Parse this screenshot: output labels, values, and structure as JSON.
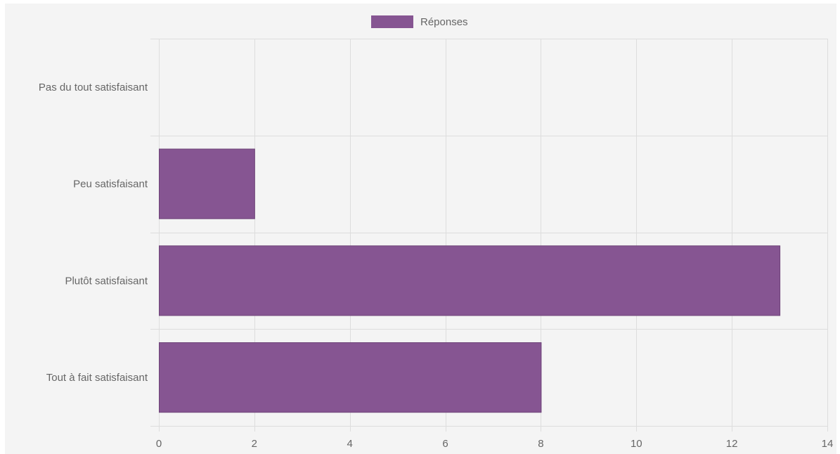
{
  "chart_data": {
    "type": "bar",
    "orientation": "horizontal",
    "categories": [
      "Pas du tout satisfaisant",
      "Peu satisfaisant",
      "Plutôt satisfaisant",
      "Tout à fait satisfaisant"
    ],
    "series": [
      {
        "name": "Réponses",
        "values": [
          0,
          2,
          13,
          8
        ]
      }
    ],
    "xlim": [
      0,
      14
    ],
    "xticks": [
      0,
      2,
      4,
      6,
      8,
      10,
      12,
      14
    ],
    "grid": true,
    "legend_position": "top-center",
    "colors": {
      "bar": "#865592",
      "grid": "#dddddd",
      "tick_text": "#666666",
      "background": "#f4f4f4"
    }
  }
}
